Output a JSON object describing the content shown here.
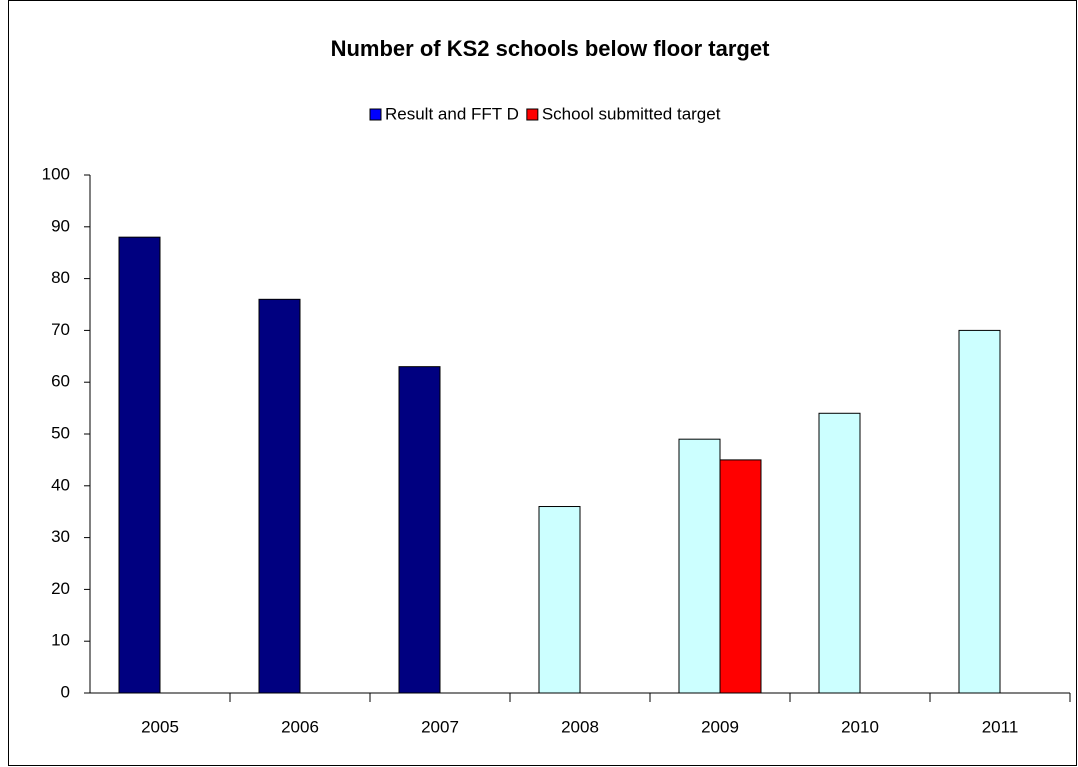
{
  "chart_data": {
    "type": "bar",
    "title": "Number of KS2 schools below floor target",
    "categories": [
      "2005",
      "2006",
      "2007",
      "2008",
      "2009",
      "2010",
      "2011"
    ],
    "series": [
      {
        "name": "Result and FFT D",
        "color": "#0000ff",
        "values": [
          88,
          76,
          63,
          36,
          49,
          54,
          70
        ],
        "bar_colors": [
          "#000080",
          "#000080",
          "#000080",
          "#ccffff",
          "#ccffff",
          "#ccffff",
          "#ccffff"
        ]
      },
      {
        "name": "School submitted target",
        "color": "#ff0000",
        "values": [
          null,
          null,
          null,
          null,
          45,
          null,
          null
        ]
      }
    ],
    "ylim": [
      0,
      100
    ],
    "yticks": [
      0,
      10,
      20,
      30,
      40,
      50,
      60,
      70,
      80,
      90,
      100
    ],
    "grid": false,
    "legend": "top"
  }
}
